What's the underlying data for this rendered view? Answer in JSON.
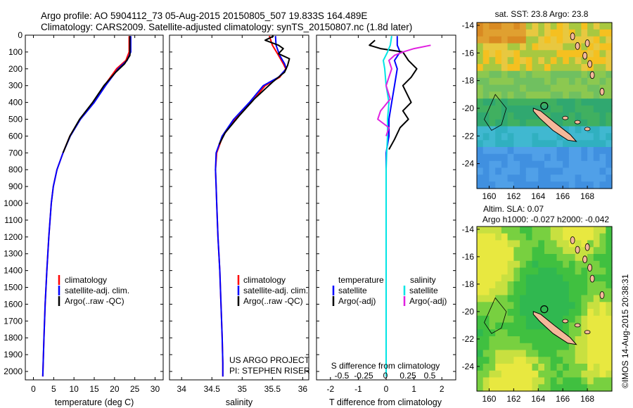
{
  "header": {
    "line1": "Argo profile: AO 5904112_73 05-Aug-2015 20150805_507 19.833S 164.489E",
    "line2": "Climatology: CARS2009. Satellite-adjusted climatology: synTS_20150807.nc (1.8d later)"
  },
  "colors": {
    "climatology": "#ff0000",
    "satellite": "#0000ff",
    "argo": "#000000",
    "sal_satellite": "#00e5e5",
    "sal_argo": "#e020e0"
  },
  "chart_data": [
    {
      "type": "line",
      "id": "temperature",
      "xlabel": "temperature (deg C)",
      "ylabel": "",
      "xlim": [
        -2,
        32
      ],
      "ylim": [
        2050,
        0
      ],
      "xticks": [
        0,
        5,
        10,
        15,
        20,
        25,
        30
      ],
      "yticks": [
        0,
        100,
        200,
        300,
        400,
        500,
        600,
        700,
        800,
        900,
        1000,
        1100,
        1200,
        1300,
        1400,
        1500,
        1600,
        1700,
        1800,
        1900,
        2000
      ],
      "legend": {
        "position": "center-left",
        "entries": [
          "climatology",
          "satellite-adj. clim.",
          "Argo(..raw -QC)"
        ]
      },
      "series": [
        {
          "name": "climatology",
          "color": "#ff0000",
          "points": [
            [
              23.6,
              5
            ],
            [
              23.6,
              60
            ],
            [
              23.6,
              100
            ],
            [
              22.8,
              150
            ],
            [
              20.5,
              200
            ],
            [
              17.5,
              300
            ],
            [
              14.8,
              400
            ],
            [
              11.5,
              500
            ],
            [
              9.0,
              600
            ],
            [
              7.3,
              700
            ],
            [
              5.8,
              800
            ],
            [
              4.9,
              900
            ],
            [
              4.4,
              1000
            ],
            [
              3.8,
              1200
            ],
            [
              3.3,
              1400
            ],
            [
              2.9,
              1600
            ],
            [
              2.6,
              1800
            ],
            [
              2.4,
              1950
            ],
            [
              2.3,
              2030
            ]
          ]
        },
        {
          "name": "satellite-adj. clim.",
          "color": "#0000ff",
          "points": [
            [
              24.0,
              5
            ],
            [
              24.0,
              60
            ],
            [
              24.0,
              100
            ],
            [
              23.1,
              150
            ],
            [
              20.9,
              200
            ],
            [
              17.8,
              300
            ],
            [
              15.0,
              400
            ],
            [
              11.6,
              500
            ],
            [
              9.1,
              600
            ],
            [
              7.3,
              700
            ],
            [
              5.8,
              800
            ],
            [
              4.9,
              900
            ],
            [
              4.4,
              1000
            ],
            [
              3.8,
              1200
            ],
            [
              3.3,
              1400
            ],
            [
              2.9,
              1600
            ],
            [
              2.6,
              1800
            ],
            [
              2.4,
              1950
            ],
            [
              2.3,
              2030
            ]
          ]
        },
        {
          "name": "Argo(..raw -QC)",
          "color": "#000000",
          "points": [
            [
              23.8,
              5
            ],
            [
              23.8,
              60
            ],
            [
              23.8,
              120
            ],
            [
              22.5,
              170
            ],
            [
              20.3,
              220
            ],
            [
              17.4,
              300
            ],
            [
              14.6,
              400
            ],
            [
              11.4,
              500
            ],
            [
              9.0,
              600
            ],
            [
              7.3,
              700
            ]
          ]
        }
      ]
    },
    {
      "type": "line",
      "id": "salinity",
      "xlabel": "salinity",
      "ylabel": "",
      "xlim": [
        33.8,
        36.1
      ],
      "ylim": [
        2050,
        0
      ],
      "xticks": [
        34,
        34.5,
        35,
        35.5,
        36
      ],
      "legend": {
        "position": "center-left",
        "entries": [
          "climatology",
          "satellite-adj. clim.",
          "Argo(..raw -QC)"
        ]
      },
      "annotations": [
        "US ARGO PROJECT",
        "PI: STEPHEN RISER"
      ],
      "series": [
        {
          "name": "climatology",
          "color": "#ff0000",
          "points": [
            [
              35.45,
              5
            ],
            [
              35.5,
              60
            ],
            [
              35.6,
              120
            ],
            [
              35.68,
              170
            ],
            [
              35.72,
              200
            ],
            [
              35.62,
              250
            ],
            [
              35.38,
              300
            ],
            [
              35.15,
              400
            ],
            [
              34.88,
              500
            ],
            [
              34.68,
              600
            ],
            [
              34.58,
              700
            ],
            [
              34.56,
              800
            ],
            [
              34.57,
              900
            ],
            [
              34.58,
              1000
            ],
            [
              34.6,
              1200
            ],
            [
              34.63,
              1400
            ],
            [
              34.65,
              1600
            ],
            [
              34.67,
              1800
            ],
            [
              34.68,
              1950
            ],
            [
              34.68,
              2030
            ]
          ]
        },
        {
          "name": "satellite-adj. clim.",
          "color": "#0000ff",
          "points": [
            [
              35.55,
              5
            ],
            [
              35.56,
              60
            ],
            [
              35.62,
              120
            ],
            [
              35.7,
              170
            ],
            [
              35.73,
              200
            ],
            [
              35.6,
              250
            ],
            [
              35.35,
              300
            ],
            [
              35.12,
              400
            ],
            [
              34.86,
              500
            ],
            [
              34.67,
              600
            ],
            [
              34.57,
              700
            ],
            [
              34.56,
              800
            ],
            [
              34.57,
              900
            ],
            [
              34.58,
              1000
            ],
            [
              34.6,
              1200
            ],
            [
              34.63,
              1400
            ],
            [
              34.65,
              1600
            ],
            [
              34.67,
              1800
            ],
            [
              34.68,
              1950
            ],
            [
              34.68,
              2030
            ]
          ]
        },
        {
          "name": "Argo(..raw -QC)",
          "color": "#000000",
          "points": [
            [
              35.52,
              5
            ],
            [
              35.38,
              30
            ],
            [
              35.6,
              60
            ],
            [
              35.68,
              80
            ],
            [
              35.6,
              110
            ],
            [
              35.78,
              140
            ],
            [
              35.75,
              180
            ],
            [
              35.7,
              220
            ],
            [
              35.5,
              280
            ],
            [
              35.2,
              380
            ],
            [
              34.95,
              480
            ],
            [
              34.72,
              580
            ],
            [
              34.62,
              650
            ]
          ]
        }
      ]
    },
    {
      "type": "line",
      "id": "differences",
      "xlabel": "T difference from climatology",
      "xlim": [
        -2.5,
        2.5
      ],
      "ylim": [
        2050,
        0
      ],
      "xticks": [
        -2,
        -1,
        0,
        1,
        2
      ],
      "secondary_xlabel": "S difference from climatology",
      "secondary_xticks": [
        "-0.5",
        "-0.25",
        "0",
        "0.25",
        "0.5"
      ],
      "legend": {
        "position": "center",
        "temperature_title": "temperature",
        "salinity_title": "salinity",
        "temperature_entries": [
          "satellite",
          "Argo(-adj)"
        ],
        "salinity_entries": [
          "satellite",
          "Argo(-adj)"
        ]
      },
      "series": [
        {
          "name": "temperature satellite",
          "color": "#0000ff",
          "points": [
            [
              0.4,
              5
            ],
            [
              0.4,
              60
            ],
            [
              0.5,
              100
            ],
            [
              0.3,
              150
            ],
            [
              0.4,
              200
            ],
            [
              0.3,
              300
            ],
            [
              0.2,
              400
            ],
            [
              0.1,
              500
            ],
            [
              0.1,
              600
            ],
            [
              0,
              700
            ],
            [
              0,
              2030
            ]
          ]
        },
        {
          "name": "temperature Argo(-adj)",
          "color": "#000000",
          "points": [
            [
              -0.4,
              30
            ],
            [
              -0.6,
              60
            ],
            [
              -0.2,
              80
            ],
            [
              0.6,
              100
            ],
            [
              0.8,
              150
            ],
            [
              1.1,
              200
            ],
            [
              0.9,
              250
            ],
            [
              0.6,
              300
            ],
            [
              0.9,
              400
            ],
            [
              0.6,
              450
            ],
            [
              0.8,
              500
            ],
            [
              0.5,
              550
            ],
            [
              0.3,
              620
            ],
            [
              0.1,
              680
            ]
          ]
        },
        {
          "name": "salinity satellite",
          "color": "#00e5e5",
          "points": [
            [
              0.2,
              5
            ],
            [
              0.15,
              60
            ],
            [
              0.05,
              100
            ],
            [
              -0.1,
              150
            ],
            [
              -0.05,
              200
            ],
            [
              0,
              300
            ],
            [
              0.1,
              400
            ],
            [
              0.05,
              500
            ],
            [
              0.05,
              600
            ],
            [
              0.02,
              700
            ],
            [
              0,
              800
            ],
            [
              0,
              1000
            ],
            [
              0,
              1500
            ],
            [
              0,
              2030
            ]
          ]
        },
        {
          "name": "salinity Argo(-adj)",
          "color": "#e020e0",
          "points": [
            [
              1.6,
              60
            ],
            [
              1.0,
              80
            ],
            [
              0.6,
              100
            ],
            [
              0.3,
              120
            ],
            [
              0.1,
              150
            ],
            [
              0.2,
              200
            ],
            [
              0,
              300
            ],
            [
              0.15,
              380
            ],
            [
              -0.2,
              450
            ],
            [
              -0.3,
              500
            ],
            [
              0.1,
              550
            ],
            [
              0,
              600
            ]
          ]
        }
      ]
    },
    {
      "type": "heatmap",
      "id": "sst-map",
      "title": "sat. SST: 23.8 Argo: 23.8",
      "xlim": [
        159,
        170
      ],
      "ylim": [
        -25.8,
        -13.8
      ],
      "xticks": [
        "160",
        "162",
        "164",
        "166",
        "168"
      ],
      "yticks": [
        "-14",
        "-16",
        "-18",
        "-20",
        "-22",
        "-24"
      ],
      "argo_position": [
        164.489,
        -19.833
      ]
    },
    {
      "type": "heatmap",
      "id": "sla-map",
      "title_line1": "Altim. SLA: 0.07",
      "title_line2": "Argo h1000: -0.027 h2000: -0.042",
      "xlim": [
        159,
        170
      ],
      "ylim": [
        -25.8,
        -13.8
      ],
      "xticks": [
        "160",
        "162",
        "164",
        "166",
        "168"
      ],
      "yticks": [
        "-14",
        "-16",
        "-18",
        "-20",
        "-22",
        "-24"
      ],
      "argo_position": [
        164.489,
        -19.833
      ]
    }
  ],
  "panels": {
    "p1": {
      "legend": [
        "climatology",
        "satellite-adj. clim.",
        "Argo(..raw -QC)"
      ],
      "xlabel": "temperature (deg C)"
    },
    "p2": {
      "legend": [
        "climatology",
        "satellite-adj. clim.",
        "Argo(..raw -QC)"
      ],
      "xlabel": "salinity",
      "note1": "US ARGO PROJECT",
      "note2": "PI: STEPHEN RISER"
    },
    "p3": {
      "temp_title": "temperature",
      "sal_title": "salinity",
      "sat": "satellite",
      "argo": "Argo(-adj)",
      "xlabel": "T difference from climatology",
      "xlabel2": "S difference from climatology"
    },
    "map1": {
      "title": "sat. SST: 23.8 Argo: 23.8"
    },
    "map2": {
      "title1": "Altim. SLA: 0.07",
      "title2": "Argo h1000: -0.027 h2000: -0.042"
    }
  },
  "watermark": "©IMOS 14-Aug-2015 20:38:31"
}
